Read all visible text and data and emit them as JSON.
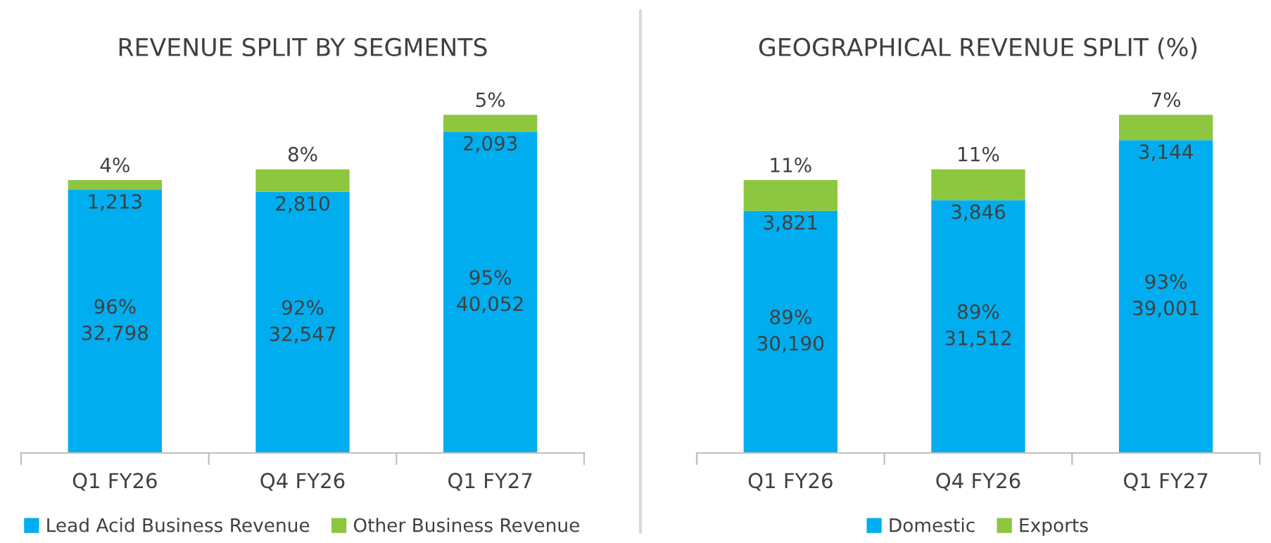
{
  "chart_data": [
    {
      "type": "bar",
      "title": "REVENUE SPLIT BY SEGMENTS",
      "categories": [
        "Q1 FY26",
        "Q4 FY26",
        "Q1 FY27"
      ],
      "stacked": true,
      "legend": "bottom",
      "grid": false,
      "series": [
        {
          "name": "Lead Acid Business Revenue",
          "color": "#00aeef",
          "values": [
            32798,
            32547,
            40052
          ],
          "value_labels": [
            "96%\n32,798",
            "92%\n32,547",
            "95%\n40,052"
          ]
        },
        {
          "name": "Other Business Revenue",
          "color": "#8dc63f",
          "values": [
            1213,
            2810,
            2093
          ],
          "value_labels": [
            "4%\n1,213",
            "8%\n2,810",
            "5%\n2,093"
          ]
        }
      ]
    },
    {
      "type": "bar",
      "title": "GEOGRAPHICAL REVENUE SPLIT (%)",
      "categories": [
        "Q1 FY26",
        "Q4 FY26",
        "Q1 FY27"
      ],
      "stacked": true,
      "legend": "bottom",
      "grid": false,
      "series": [
        {
          "name": "Domestic",
          "color": "#00aeef",
          "values": [
            30190,
            31512,
            39001
          ],
          "value_labels": [
            "89%\n30,190",
            "89%\n31,512",
            "93%\n39,001"
          ]
        },
        {
          "name": "Exports",
          "color": "#8dc63f",
          "values": [
            3821,
            3846,
            3144
          ],
          "value_labels": [
            "11%\n3,821",
            "11%\n3,846",
            "7%\n3,144"
          ]
        }
      ]
    }
  ]
}
